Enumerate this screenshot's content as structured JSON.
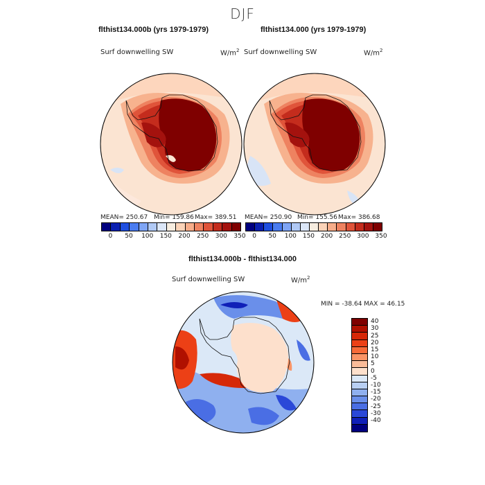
{
  "title": "DJF",
  "panels": [
    {
      "title": "flthist134.000b (yrs 1979-1979)",
      "variable": "Surf downwelling SW",
      "units_base": "W/m",
      "units_exp": "2",
      "mean": "MEAN= 250.67",
      "min": "Min= 159.86",
      "max": "Max= 389.51"
    },
    {
      "title": "flthist134.000 (yrs 1979-1979)",
      "variable": "Surf downwelling SW",
      "units_base": "W/m",
      "units_exp": "2",
      "mean": "MEAN= 250.90",
      "min": "Min= 155.56",
      "max": "Max= 386.68"
    }
  ],
  "top_colorbar": {
    "labels": [
      "0",
      "50",
      "100",
      "150",
      "200",
      "250",
      "300",
      "350"
    ],
    "colors": [
      "#00007f",
      "#0a1fb0",
      "#1f4fe0",
      "#4a7cf0",
      "#7fa5f5",
      "#b0c9f5",
      "#dbe6f7",
      "#f7ede0",
      "#fbd3b8",
      "#f7ad8a",
      "#ee8260",
      "#e0543a",
      "#c42c1d",
      "#a4120e",
      "#7f0000"
    ]
  },
  "difference": {
    "title": "flthist134.000b - flthist134.000",
    "variable": "Surf downwelling SW",
    "units_base": "W/m",
    "units_exp": "2",
    "minmax": "MIN = -38.64 MAX =  46.15",
    "colorbar": {
      "labels": [
        "40",
        "30",
        "25",
        "20",
        "15",
        "10",
        "5",
        "0",
        "-5",
        "-10",
        "-15",
        "-20",
        "-25",
        "-30",
        "-40"
      ],
      "colors": [
        "#7f0000",
        "#b01000",
        "#d62808",
        "#ec4016",
        "#f76a38",
        "#fa9466",
        "#fbbc99",
        "#fde0cc",
        "#dbe8f7",
        "#b8cff3",
        "#8fb0ef",
        "#6a8fea",
        "#4a6ee4",
        "#2a48d8",
        "#1020b8",
        "#00007f"
      ]
    }
  }
}
